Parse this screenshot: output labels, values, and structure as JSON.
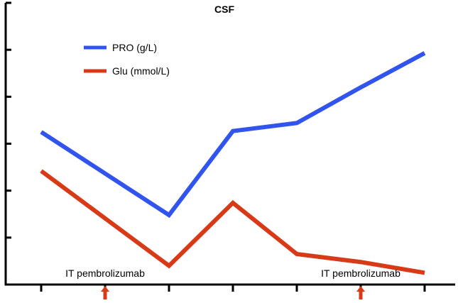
{
  "chart_data": {
    "type": "line",
    "title": "CSF",
    "xlabel": "",
    "ylabel": "",
    "x": [
      0,
      1,
      2,
      3,
      4,
      5,
      6
    ],
    "ylim": [
      0,
      6
    ],
    "y_ticks": [
      0,
      1,
      2,
      3,
      4,
      5,
      6
    ],
    "grid": false,
    "legend_position": "top-left",
    "series": [
      {
        "name": "PRO (g/L)",
        "color": "#3154EE",
        "points": [
          {
            "x": 0,
            "y": 3.25
          },
          {
            "x": 2,
            "y": 1.48
          },
          {
            "x": 3,
            "y": 3.27
          },
          {
            "x": 4,
            "y": 3.44
          },
          {
            "x": 5,
            "y": 4.2
          },
          {
            "x": 6,
            "y": 4.93
          }
        ]
      },
      {
        "name": "Glu (mmol/L)",
        "color": "#D83A18",
        "points": [
          {
            "x": 0,
            "y": 2.42
          },
          {
            "x": 2,
            "y": 0.4
          },
          {
            "x": 3,
            "y": 1.74
          },
          {
            "x": 4,
            "y": 0.65
          },
          {
            "x": 5,
            "y": 0.48
          },
          {
            "x": 6,
            "y": 0.25
          }
        ]
      }
    ],
    "annotations": [
      {
        "text": "IT pembrolizumab",
        "x": 1,
        "arrow_color": "#D83A18"
      },
      {
        "text": "IT pembrolizumab",
        "x": 5,
        "arrow_color": "#D83A18"
      }
    ]
  }
}
